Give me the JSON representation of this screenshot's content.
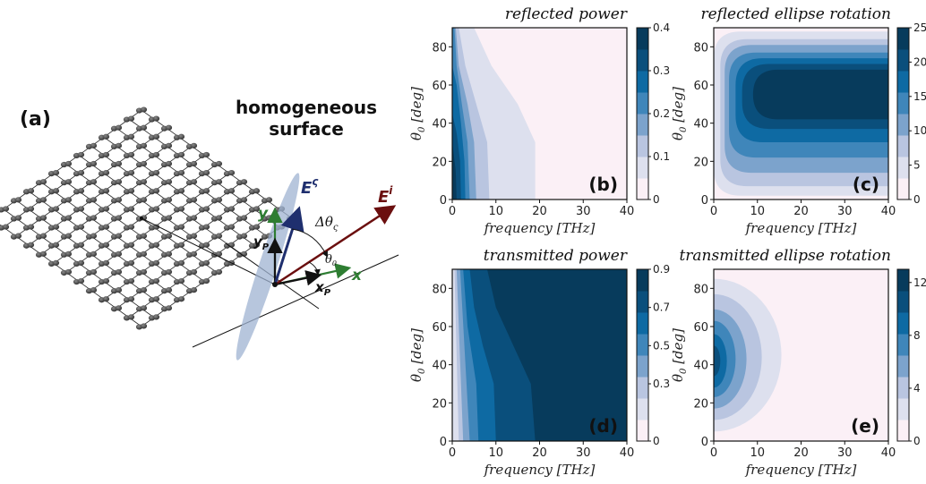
{
  "figure": {
    "panel_a": {
      "label": "(a)",
      "surface_title_line1": "homogeneous",
      "surface_title_line2": "surface",
      "vec_es": "E",
      "vec_es_sup": "ς",
      "vec_ei": "E",
      "vec_ei_sup": "i",
      "delta_theta": "Δθ",
      "delta_theta_sub": "ς",
      "theta0": "θ",
      "theta0_sub": "0",
      "axis_y": "y",
      "axis_x": "x",
      "axis_yp": "y",
      "axis_yp_sub": "P",
      "axis_xp": "x",
      "axis_xp_sub": "P"
    }
  },
  "colors": {
    "scale": [
      "#fbf0f6",
      "#dde0ee",
      "#b9c5e0",
      "#7ca3cc",
      "#3f86ba",
      "#0e6aa3",
      "#0a4f7c",
      "#073b5c"
    ],
    "green_axis": "#2e7d32",
    "incident": "#6b0f0f",
    "ellipse": "#9fb3d1",
    "scatter_vec": "#1f2f6e"
  },
  "chart_data": [
    {
      "type": "heatmap",
      "id": "b",
      "title": "reflected power",
      "panel_label": "(b)",
      "xlabel": "frequency [THz]",
      "ylabel": "θ0 [deg]",
      "xlim": [
        0,
        40
      ],
      "ylim": [
        0,
        90
      ],
      "xticks": [
        "0",
        "10",
        "20",
        "30",
        "40"
      ],
      "yticks": [
        "0",
        "20",
        "40",
        "60",
        "80"
      ],
      "colorbar": {
        "min": 0,
        "max": 0.4,
        "ticks": [
          "0",
          "0.1",
          "0.2",
          "0.3",
          "0.4"
        ]
      },
      "contour_boundaries": [
        {
          "level": 0.05,
          "x_at_theta": [
            [
              0,
              19
            ],
            [
              30,
              19
            ],
            [
              50,
              15
            ],
            [
              70,
              9
            ],
            [
              90,
              5
            ]
          ]
        },
        {
          "level": 0.1,
          "x_at_theta": [
            [
              0,
              8.5
            ],
            [
              30,
              8
            ],
            [
              50,
              5.5
            ],
            [
              70,
              3
            ],
            [
              90,
              1.5
            ]
          ]
        },
        {
          "level": 0.15,
          "x_at_theta": [
            [
              0,
              5.5
            ],
            [
              30,
              5
            ],
            [
              50,
              3.5
            ],
            [
              70,
              1.5
            ],
            [
              90,
              0.8
            ]
          ]
        },
        {
          "level": 0.2,
          "x_at_theta": [
            [
              0,
              4
            ],
            [
              30,
              3.5
            ],
            [
              50,
              2.2
            ],
            [
              70,
              1
            ],
            [
              90,
              0.5
            ]
          ]
        },
        {
          "level": 0.25,
          "x_at_theta": [
            [
              0,
              3
            ],
            [
              20,
              2.8
            ],
            [
              40,
              2
            ],
            [
              60,
              1
            ],
            [
              70,
              0
            ]
          ]
        },
        {
          "level": 0.3,
          "x_at_theta": [
            [
              0,
              2
            ],
            [
              20,
              1.8
            ],
            [
              35,
              1
            ],
            [
              45,
              0
            ]
          ]
        },
        {
          "level": 0.35,
          "x_at_theta": [
            [
              0,
              1
            ],
            [
              15,
              0.8
            ],
            [
              30,
              0
            ]
          ]
        }
      ]
    },
    {
      "type": "heatmap",
      "id": "c",
      "title": "reflected ellipse rotation",
      "panel_label": "(c)",
      "xlabel": "frequency [THz]",
      "ylabel": "θ0 [deg]",
      "xlim": [
        0,
        40
      ],
      "ylim": [
        0,
        90
      ],
      "xticks": [
        "0",
        "10",
        "20",
        "30",
        "40"
      ],
      "yticks": [
        "0",
        "20",
        "40",
        "60",
        "80"
      ],
      "colorbar": {
        "min": 0,
        "max": 25,
        "ticks": [
          "0",
          "5",
          "10",
          "15",
          "20",
          "25"
        ]
      },
      "contour_bands": [
        {
          "level": 3,
          "x_start": 0,
          "theta_range": [
            2,
            88
          ]
        },
        {
          "level": 6,
          "x_start": 1.5,
          "theta_range": [
            7,
            84
          ]
        },
        {
          "level": 9,
          "x_start": 2.5,
          "theta_range": [
            14,
            81
          ]
        },
        {
          "level": 12,
          "x_start": 3.5,
          "theta_range": [
            22,
            77
          ]
        },
        {
          "level": 15,
          "x_start": 5,
          "theta_range": [
            30,
            74
          ]
        },
        {
          "level": 18,
          "x_start": 6.5,
          "theta_range": [
            37,
            71
          ]
        },
        {
          "level": 22,
          "x_start": 9,
          "theta_range": [
            42,
            68
          ]
        }
      ]
    },
    {
      "type": "heatmap",
      "id": "d",
      "title": "transmitted power",
      "panel_label": "(d)",
      "xlabel": "frequency [THz]",
      "ylabel": "θ0 [deg]",
      "xlim": [
        0,
        40
      ],
      "ylim": [
        0,
        90
      ],
      "xticks": [
        "0",
        "10",
        "20",
        "30",
        "40"
      ],
      "yticks": [
        "0",
        "20",
        "40",
        "60",
        "80"
      ],
      "colorbar": {
        "min": 0,
        "max": 0.9,
        "ticks": [
          "0",
          "0.3",
          "0.5",
          "0.7",
          "0.9"
        ]
      },
      "contour_boundaries": [
        {
          "level": 0.15,
          "x_at_theta": [
            [
              0,
              1.5
            ],
            [
              90,
              0.5
            ]
          ]
        },
        {
          "level": 0.3,
          "x_at_theta": [
            [
              0,
              2.5
            ],
            [
              90,
              1
            ]
          ]
        },
        {
          "level": 0.45,
          "x_at_theta": [
            [
              0,
              4
            ],
            [
              90,
              1.8
            ]
          ]
        },
        {
          "level": 0.6,
          "x_at_theta": [
            [
              0,
              6
            ],
            [
              30,
              5.5
            ],
            [
              60,
              3.5
            ],
            [
              90,
              2.5
            ]
          ]
        },
        {
          "level": 0.75,
          "x_at_theta": [
            [
              0,
              10
            ],
            [
              30,
              9.5
            ],
            [
              50,
              7
            ],
            [
              70,
              5
            ],
            [
              90,
              4
            ]
          ]
        },
        {
          "level": 0.85,
          "x_at_theta": [
            [
              0,
              19
            ],
            [
              30,
              18
            ],
            [
              50,
              14
            ],
            [
              70,
              10
            ],
            [
              90,
              8
            ]
          ]
        }
      ]
    },
    {
      "type": "heatmap",
      "id": "e",
      "title": "transmitted ellipse rotation",
      "panel_label": "(e)",
      "xlabel": "frequency [THz]",
      "ylabel": "θ0 [deg]",
      "xlim": [
        0,
        40
      ],
      "ylim": [
        0,
        90
      ],
      "xticks": [
        "0",
        "10",
        "20",
        "30",
        "40"
      ],
      "yticks": [
        "0",
        "20",
        "40",
        "60",
        "80"
      ],
      "colorbar": {
        "min": 0,
        "max": 13,
        "ticks": [
          "0",
          "4",
          "8",
          "12"
        ]
      },
      "contour_lobes": [
        {
          "level": 1.5,
          "center_theta": 45,
          "x_extent": 15.5,
          "theta_half": 40
        },
        {
          "level": 3,
          "center_theta": 44,
          "x_extent": 11,
          "theta_half": 33
        },
        {
          "level": 5,
          "center_theta": 43,
          "x_extent": 7.5,
          "theta_half": 26
        },
        {
          "level": 7,
          "center_theta": 43,
          "x_extent": 5,
          "theta_half": 20
        },
        {
          "level": 9,
          "center_theta": 42,
          "x_extent": 3,
          "theta_half": 14
        },
        {
          "level": 11,
          "center_theta": 42,
          "x_extent": 1.5,
          "theta_half": 8
        }
      ]
    }
  ]
}
